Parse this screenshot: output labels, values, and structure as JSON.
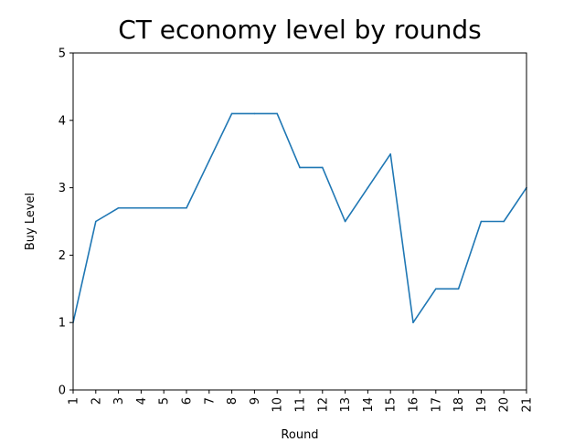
{
  "chart_data": {
    "type": "line",
    "title": "CT economy level by rounds",
    "xlabel": "Round",
    "ylabel": "Buy Level",
    "categories": [
      "1",
      "2",
      "3",
      "4",
      "5",
      "6",
      "7",
      "8",
      "9",
      "10",
      "11",
      "12",
      "13",
      "14",
      "15",
      "16",
      "17",
      "18",
      "19",
      "20",
      "21"
    ],
    "x": [
      1,
      2,
      3,
      4,
      5,
      6,
      7,
      8,
      9,
      10,
      11,
      12,
      13,
      14,
      15,
      16,
      17,
      18,
      19,
      20,
      21
    ],
    "yticks": [
      "0",
      "1",
      "2",
      "3",
      "4",
      "5"
    ],
    "series": [
      {
        "values": [
          1.0,
          2.5,
          2.7,
          2.7,
          2.7,
          2.7,
          3.4,
          4.1,
          4.1,
          4.1,
          3.3,
          3.3,
          2.5,
          3.0,
          3.5,
          1.0,
          1.5,
          1.5,
          2.5,
          2.5,
          3.0
        ],
        "color": "#1f77b4"
      }
    ],
    "xlim": [
      1,
      21
    ],
    "ylim": [
      0,
      5
    ],
    "grid": false,
    "legend": "none"
  }
}
